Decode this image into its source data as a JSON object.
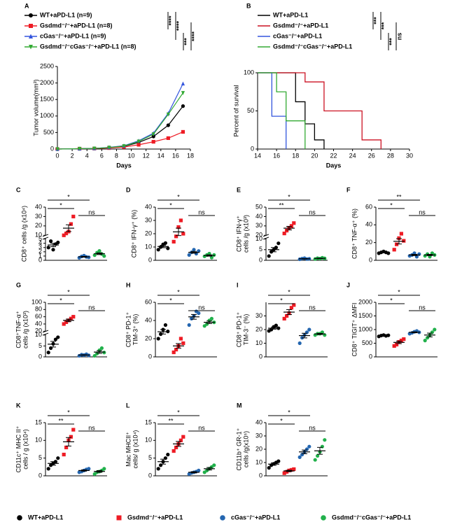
{
  "legend": [
    {
      "name": "WT+aPD-L1",
      "color": "#000000"
    },
    {
      "name": "Gsdmd⁻/⁻+aPD-L1",
      "color": "#ee1c25"
    },
    {
      "name": "cGas⁻/⁻+aPD-L1",
      "color": "#2466b0"
    },
    {
      "name": "Gsdmd⁻/⁻cGas⁻/⁻+aPD-L1",
      "color": "#22b14c"
    }
  ],
  "chart_data": [
    {
      "type": "line",
      "panel": "A",
      "xlabel": "Days",
      "ylabel": [
        "Tumor volume(mm³)"
      ],
      "x": [
        0,
        3,
        5,
        7,
        9,
        11,
        13,
        15,
        17
      ],
      "xlim": [
        0,
        18
      ],
      "xticks": [
        0,
        2,
        4,
        6,
        8,
        10,
        12,
        14,
        16,
        18
      ],
      "ylim": [
        0,
        2500
      ],
      "yticks": [
        0,
        500,
        1000,
        1500,
        2000,
        2500
      ],
      "series": [
        {
          "name": "WT+aPD-L1 (n=9)",
          "color": "#000000",
          "values": [
            0,
            10,
            20,
            40,
            80,
            200,
            380,
            720,
            1300
          ]
        },
        {
          "name": "Gsdmd⁻/⁻+aPD-L1 (n=8)",
          "color": "#ee1c25",
          "values": [
            0,
            10,
            15,
            30,
            60,
            130,
            220,
            330,
            520
          ]
        },
        {
          "name": "cGas⁻/⁻+aPD-L1 (n=9)",
          "color": "#3355dd",
          "values": [
            0,
            10,
            20,
            50,
            100,
            250,
            480,
            1080,
            1980
          ]
        },
        {
          "name": "Gsdmd⁻/⁻cGas⁻/⁻+aPD-L1 (n=8)",
          "color": "#33aa33",
          "values": [
            0,
            10,
            20,
            45,
            90,
            230,
            450,
            1050,
            1700
          ]
        }
      ],
      "annotations": [
        {
          "text": "****",
          "groups": [
            0,
            1
          ]
        },
        {
          "text": "****",
          "groups": [
            0,
            2
          ]
        },
        {
          "text": "***",
          "groups": [
            2,
            3
          ]
        },
        {
          "text": "****",
          "groups": [
            1,
            3
          ]
        }
      ]
    },
    {
      "type": "step",
      "panel": "B",
      "xlabel": "Days",
      "ylabel": [
        "Percent of survival"
      ],
      "xlim": [
        14,
        30
      ],
      "xticks": [
        14,
        16,
        18,
        20,
        22,
        24,
        26,
        28,
        30
      ],
      "ylim": [
        0,
        100
      ],
      "yticks": [
        0,
        50,
        100
      ],
      "series": [
        {
          "name": "WT+aPD-L1",
          "color": "#000000",
          "x": [
            14,
            18,
            19,
            20,
            21
          ],
          "values": [
            100,
            62,
            33,
            12,
            0
          ]
        },
        {
          "name": "Gsdmd⁻/⁻+aPD-L1",
          "color": "#cc1122",
          "x": [
            14,
            19,
            21,
            25,
            27
          ],
          "values": [
            100,
            88,
            50,
            12,
            0
          ]
        },
        {
          "name": "cGas⁻/⁻+aPD-L1",
          "color": "#3355dd",
          "x": [
            14,
            15.5,
            17
          ],
          "values": [
            100,
            43,
            0
          ]
        },
        {
          "name": "Gsdmd⁻/⁻cGas⁻/⁻+aPD-L1",
          "color": "#33aa33",
          "x": [
            14,
            16,
            17,
            19
          ],
          "values": [
            100,
            75,
            37,
            0
          ]
        }
      ],
      "annotations": [
        {
          "text": "***",
          "groups": [
            0,
            1
          ]
        },
        {
          "text": "***",
          "groups": [
            0,
            2
          ]
        },
        {
          "text": "***",
          "groups": [
            2,
            3
          ]
        },
        {
          "text": "ns",
          "groups": [
            1,
            3
          ]
        }
      ]
    },
    {
      "type": "dot",
      "panel": "C",
      "ylabel": [
        "CD8⁺ cells /g (x10⁴)"
      ],
      "ylim": [
        0,
        40
      ],
      "ybreak": [
        5,
        10
      ],
      "yticks": [
        0,
        1,
        2,
        3,
        4,
        5,
        10,
        20,
        30,
        40
      ],
      "series": [
        {
          "values": [
            3.0,
            4.5,
            2.5,
            3.8,
            4.2
          ],
          "mean": 3.6,
          "error": 0.4
        },
        {
          "values": [
            10,
            12,
            14,
            22,
            30
          ],
          "mean": 17.6,
          "error": 3.6
        },
        {
          "values": [
            0.6,
            0.9,
            1.1,
            0.8,
            0.7
          ],
          "mean": 0.82,
          "error": 0.09
        },
        {
          "values": [
            1.2,
            1.8,
            2.2,
            1.5,
            1.0
          ],
          "mean": 1.54,
          "error": 0.2
        }
      ],
      "annotations": [
        {
          "text": "*",
          "groups": [
            0,
            1
          ]
        },
        {
          "text": "*",
          "groups": [
            0,
            2
          ]
        },
        {
          "text": "ns",
          "groups": [
            2,
            3
          ]
        }
      ]
    },
    {
      "type": "dot",
      "panel": "D",
      "ylabel": [
        "CD8⁺ IFN-γ⁺ (%)"
      ],
      "ylim": [
        0,
        40
      ],
      "yticks": [
        0,
        10,
        20,
        30,
        40
      ],
      "series": [
        {
          "values": [
            8,
            10,
            12,
            13,
            9
          ],
          "mean": 10.4,
          "error": 0.9
        },
        {
          "values": [
            14,
            18,
            25,
            30,
            20
          ],
          "mean": 21.4,
          "error": 2.8
        },
        {
          "values": [
            4,
            6,
            8,
            5,
            7
          ],
          "mean": 6,
          "error": 0.7
        },
        {
          "values": [
            3,
            4,
            5,
            2,
            4
          ],
          "mean": 3.6,
          "error": 0.5
        }
      ],
      "annotations": [
        {
          "text": "*",
          "groups": [
            0,
            1
          ]
        },
        {
          "text": "*",
          "groups": [
            0,
            2
          ]
        },
        {
          "text": "ns",
          "groups": [
            2,
            3
          ]
        }
      ]
    },
    {
      "type": "dot",
      "panel": "E",
      "ylabel": [
        "CD8⁺ IFN-γ⁺",
        "cells /g (x10³)"
      ],
      "ylim": [
        0,
        50
      ],
      "ybreak": [
        10,
        20
      ],
      "yticks": [
        0,
        5,
        10,
        20,
        30,
        40,
        50
      ],
      "series": [
        {
          "values": [
            2,
            4,
            5,
            6,
            8
          ],
          "mean": 5,
          "error": 1
        },
        {
          "values": [
            22,
            25,
            28,
            30,
            33
          ],
          "mean": 27.6,
          "error": 1.9
        },
        {
          "values": [
            0.5,
            0.8,
            1.0,
            0.6,
            0.7
          ],
          "mean": 0.72,
          "error": 0.09
        },
        {
          "values": [
            0.6,
            1.0,
            0.8,
            1.2,
            0.9
          ],
          "mean": 0.9,
          "error": 0.1
        }
      ],
      "annotations": [
        {
          "text": "**",
          "groups": [
            0,
            1
          ]
        },
        {
          "text": "*",
          "groups": [
            0,
            2
          ]
        },
        {
          "text": "ns",
          "groups": [
            2,
            3
          ]
        }
      ]
    },
    {
      "type": "dot",
      "panel": "F",
      "ylabel": [
        "CD8⁺ TNF-α⁺ (%)"
      ],
      "ylim": [
        0,
        60
      ],
      "yticks": [
        0,
        20,
        40,
        60
      ],
      "series": [
        {
          "values": [
            8,
            9,
            10,
            9,
            8
          ],
          "mean": 8.8,
          "error": 0.4
        },
        {
          "values": [
            12,
            18,
            25,
            30,
            22
          ],
          "mean": 21.4,
          "error": 3
        },
        {
          "values": [
            5,
            6,
            8,
            4,
            7
          ],
          "mean": 6,
          "error": 0.7
        },
        {
          "values": [
            5,
            7,
            4,
            8,
            6
          ],
          "mean": 6,
          "error": 0.7
        }
      ],
      "annotations": [
        {
          "text": "*",
          "groups": [
            0,
            1
          ]
        },
        {
          "text": "**",
          "groups": [
            0,
            2
          ]
        },
        {
          "text": "ns",
          "groups": [
            2,
            3
          ]
        }
      ]
    },
    {
      "type": "dot",
      "panel": "G",
      "ylabel": [
        "CD8⁺TNF-α⁺",
        "cells /g (x10³)"
      ],
      "ylim": [
        0,
        100
      ],
      "ybreak": [
        10,
        20
      ],
      "yticks": [
        0,
        5,
        10,
        20,
        40,
        60,
        80,
        100
      ],
      "series": [
        {
          "values": [
            2,
            4,
            6,
            8,
            9
          ],
          "mean": 5.8,
          "error": 1.3
        },
        {
          "values": [
            40,
            45,
            50,
            55,
            60
          ],
          "mean": 50,
          "error": 3.5
        },
        {
          "values": [
            0.5,
            1,
            0.8,
            1.2,
            0.7
          ],
          "mean": 0.84,
          "error": 0.12
        },
        {
          "values": [
            0.5,
            1.5,
            3,
            4,
            2
          ],
          "mean": 2.2,
          "error": 0.6
        }
      ],
      "annotations": [
        {
          "text": "*",
          "groups": [
            0,
            1
          ]
        },
        {
          "text": "*",
          "groups": [
            0,
            2
          ]
        },
        {
          "text": "ns",
          "groups": [
            2,
            3
          ]
        }
      ]
    },
    {
      "type": "dot",
      "panel": "H",
      "ylabel": [
        "CD8⁺ PD-1⁺",
        "TIM-3⁺ (%)"
      ],
      "ylim": [
        0,
        60
      ],
      "yticks": [
        0,
        20,
        40,
        60
      ],
      "series": [
        {
          "values": [
            20,
            25,
            30,
            35,
            28
          ],
          "mean": 27.6,
          "error": 2.5
        },
        {
          "values": [
            5,
            8,
            12,
            20,
            15
          ],
          "mean": 12,
          "error": 2.6
        },
        {
          "values": [
            35,
            42,
            45,
            50,
            48
          ],
          "mean": 44,
          "error": 2.6
        },
        {
          "values": [
            34,
            36,
            40,
            42,
            38
          ],
          "mean": 38,
          "error": 1.4
        }
      ],
      "annotations": [
        {
          "text": "*",
          "groups": [
            0,
            1
          ]
        },
        {
          "text": "*",
          "groups": [
            0,
            2
          ]
        },
        {
          "text": "ns",
          "groups": [
            2,
            3
          ]
        }
      ]
    },
    {
      "type": "dot",
      "panel": "I",
      "ylabel": [
        "CD8⁺ PD-1⁺",
        "TIM-3⁻ (%)"
      ],
      "ylim": [
        0,
        40
      ],
      "yticks": [
        0,
        10,
        20,
        30
      ],
      "series": [
        {
          "values": [
            19,
            20,
            22,
            23,
            21
          ],
          "mean": 21,
          "error": 0.7
        },
        {
          "values": [
            28,
            30,
            32,
            36,
            38
          ],
          "mean": 32.8,
          "error": 1.8
        },
        {
          "values": [
            10,
            14,
            16,
            18,
            20
          ],
          "mean": 15.6,
          "error": 1.7
        },
        {
          "values": [
            16,
            17,
            17,
            18,
            16
          ],
          "mean": 16.8,
          "error": 0.4
        }
      ],
      "annotations": [
        {
          "text": "*",
          "groups": [
            0,
            1
          ]
        },
        {
          "text": "*",
          "groups": [
            0,
            2
          ]
        },
        {
          "text": "ns",
          "groups": [
            2,
            3
          ]
        }
      ]
    },
    {
      "type": "dot",
      "panel": "J",
      "ylabel": [
        "CD8⁺ TIGIT⁺ ΔMFI"
      ],
      "ylim": [
        0,
        2000
      ],
      "yticks": [
        0,
        500,
        1000,
        1500,
        2000
      ],
      "series": [
        {
          "values": [
            750,
            780,
            800,
            770,
            790
          ],
          "mean": 778,
          "error": 9
        },
        {
          "values": [
            400,
            450,
            550,
            600,
            650
          ],
          "mean": 530,
          "error": 46
        },
        {
          "values": [
            850,
            880,
            920,
            950,
            900
          ],
          "mean": 900,
          "error": 17
        },
        {
          "values": [
            600,
            700,
            800,
            900,
            1000
          ],
          "mean": 800,
          "error": 70
        }
      ],
      "annotations": [
        {
          "text": "*",
          "groups": [
            0,
            1
          ]
        },
        {
          "text": "*",
          "groups": [
            0,
            2
          ]
        },
        {
          "text": "ns",
          "groups": [
            2,
            3
          ]
        }
      ]
    },
    {
      "type": "dot",
      "panel": "K",
      "ylabel": [
        "CD11c⁺ MHC II⁺",
        "cells / g (x10⁴)"
      ],
      "ylim": [
        0,
        15
      ],
      "yticks": [
        0,
        5,
        10,
        15
      ],
      "series": [
        {
          "values": [
            2,
            3,
            3.5,
            4,
            5
          ],
          "mean": 3.5,
          "error": 0.5
        },
        {
          "values": [
            6,
            8,
            10,
            11,
            13
          ],
          "mean": 9.6,
          "error": 1.2
        },
        {
          "values": [
            1,
            1.2,
            1.5,
            1.8,
            2
          ],
          "mean": 1.5,
          "error": 0.18
        },
        {
          "values": [
            0.5,
            1,
            1.2,
            1.5,
            2
          ],
          "mean": 1.24,
          "error": 0.25
        }
      ],
      "annotations": [
        {
          "text": "**",
          "groups": [
            0,
            1
          ]
        },
        {
          "text": "*",
          "groups": [
            0,
            2
          ]
        },
        {
          "text": "ns",
          "groups": [
            2,
            3
          ]
        }
      ]
    },
    {
      "type": "dot",
      "panel": "L",
      "ylabel": [
        "Mac MHCII⁺",
        "cells/ g (x10⁴)"
      ],
      "ylim": [
        0,
        15
      ],
      "yticks": [
        0,
        5,
        10,
        15
      ],
      "series": [
        {
          "values": [
            2,
            3,
            4,
            5,
            6
          ],
          "mean": 4,
          "error": 0.7
        },
        {
          "values": [
            7,
            8,
            9,
            10,
            11
          ],
          "mean": 9,
          "error": 0.7
        },
        {
          "values": [
            0.5,
            0.8,
            1,
            1.2,
            1.5
          ],
          "mean": 1,
          "error": 0.17
        },
        {
          "values": [
            1,
            1.5,
            2,
            2.5,
            3
          ],
          "mean": 2,
          "error": 0.35
        }
      ],
      "annotations": [
        {
          "text": "**",
          "groups": [
            0,
            1
          ]
        },
        {
          "text": "*",
          "groups": [
            0,
            2
          ]
        },
        {
          "text": "ns",
          "groups": [
            2,
            3
          ]
        }
      ]
    },
    {
      "type": "dot",
      "panel": "M",
      "ylabel": [
        "CD11b⁺ GR-1⁺",
        "cells /g(x10⁵)"
      ],
      "ylim": [
        0,
        40
      ],
      "yticks": [
        0,
        10,
        20,
        30,
        40
      ],
      "series": [
        {
          "values": [
            6,
            8,
            9,
            10,
            11
          ],
          "mean": 8.8,
          "error": 0.9
        },
        {
          "values": [
            2,
            3,
            4,
            4.5,
            5
          ],
          "mean": 3.7,
          "error": 0.5
        },
        {
          "values": [
            14,
            16,
            18,
            20,
            22
          ],
          "mean": 18,
          "error": 1.4
        },
        {
          "values": [
            12,
            15,
            18,
            22,
            27
          ],
          "mean": 18.8,
          "error": 2.6
        }
      ],
      "annotations": [
        {
          "text": "*",
          "groups": [
            0,
            1
          ]
        },
        {
          "text": "*",
          "groups": [
            0,
            2
          ]
        },
        {
          "text": "ns",
          "groups": [
            2,
            3
          ]
        }
      ]
    }
  ]
}
